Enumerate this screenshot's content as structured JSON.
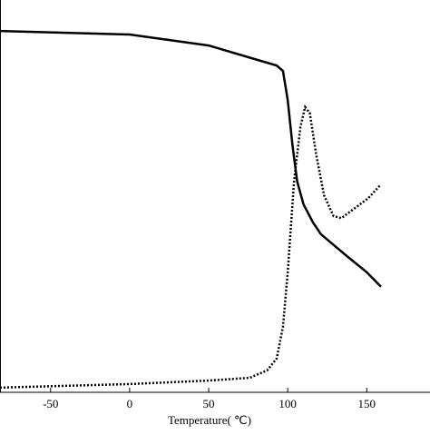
{
  "chart_data": {
    "type": "line",
    "xlabel": "Temperature( ℃)",
    "xlim": [
      -82,
      190
    ],
    "ylim": [
      0,
      100
    ],
    "xticks": [
      -50,
      0,
      50,
      100,
      150
    ],
    "series": [
      {
        "color": "#000000",
        "style": "solid",
        "x": [
          -82,
          0,
          50,
          93,
          97,
          100,
          103,
          106,
          110,
          116,
          121,
          136,
          150,
          159
        ],
        "values": [
          92.1,
          91.2,
          88.4,
          83.3,
          81.9,
          74.5,
          63.0,
          53.7,
          47.9,
          43.3,
          40.3,
          35.2,
          30.6,
          26.9
        ]
      },
      {
        "color": "#000000",
        "style": "dotted",
        "x": [
          -82,
          0,
          50,
          76,
          87,
          93,
          97,
          100,
          104,
          108,
          111,
          114,
          118,
          123,
          129,
          134,
          142,
          151,
          159
        ],
        "values": [
          1.2,
          2.1,
          3.0,
          3.7,
          5.6,
          8.6,
          16.7,
          30.6,
          53.7,
          67.6,
          72.7,
          71.1,
          60.6,
          50.2,
          44.9,
          44.4,
          46.8,
          49.5,
          53.0
        ]
      }
    ]
  }
}
